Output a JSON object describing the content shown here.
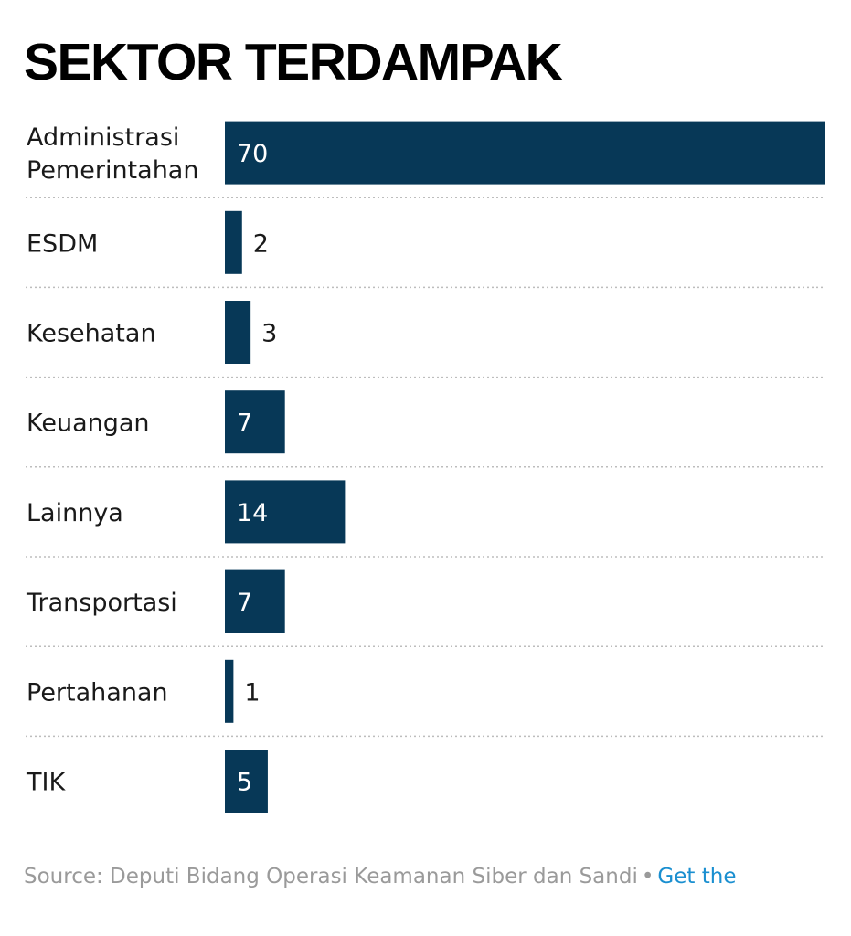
{
  "chart_data": {
    "type": "bar",
    "orientation": "horizontal",
    "title": "SEKTOR TERDAMPAK",
    "categories": [
      [
        "Administrasi",
        "Pemerintahan"
      ],
      [
        "ESDM"
      ],
      [
        "Kesehatan"
      ],
      [
        "Keuangan"
      ],
      [
        "Lainnya"
      ],
      [
        "Transportasi"
      ],
      [
        "Pertahanan"
      ],
      [
        "TIK"
      ]
    ],
    "values": [
      70,
      2,
      3,
      7,
      14,
      7,
      1,
      5
    ],
    "xlim": [
      0,
      70
    ],
    "bar_color": "#073857",
    "grid": false
  },
  "footer": {
    "source": "Source: Deputi Bidang Operasi Keamanan Siber dan Sandi",
    "separator": "•",
    "link": "Get the"
  }
}
